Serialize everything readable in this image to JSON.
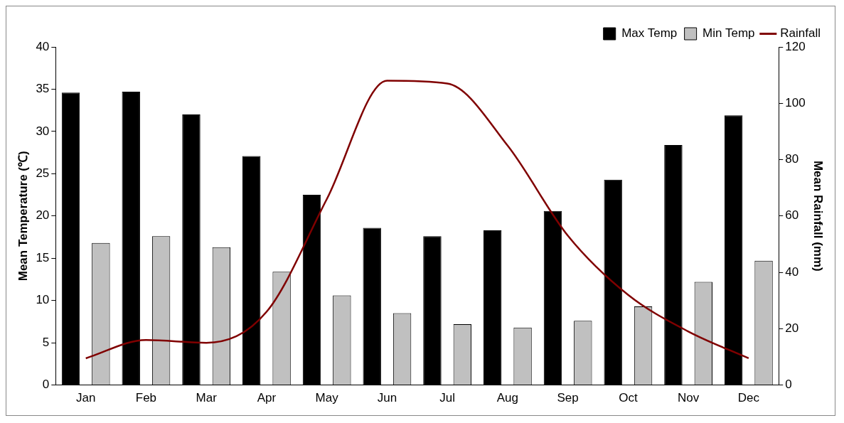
{
  "chart_data": {
    "type": "bar",
    "xlabel": null,
    "ylabel": "Mean Temperature (℃)",
    "y2label": "Mean Rainfall (mm)",
    "categories": [
      "Jan",
      "Feb",
      "Mar",
      "Apr",
      "May",
      "Jun",
      "Jul",
      "Aug",
      "Sep",
      "Oct",
      "Nov",
      "Dec"
    ],
    "series": [
      {
        "name": "Max Temp",
        "color": "#000000",
        "values": [
          34.6,
          34.7,
          32.0,
          27.1,
          22.5,
          18.6,
          17.6,
          18.3,
          20.6,
          24.3,
          28.4,
          31.9
        ]
      },
      {
        "name": "Min Temp",
        "color": "#c0c0c0",
        "values": [
          16.8,
          17.6,
          16.3,
          13.4,
          10.6,
          8.5,
          7.2,
          6.8,
          7.6,
          9.3,
          12.2,
          14.7
        ]
      },
      {
        "name": "Rainfall",
        "type": "line",
        "axis": "y2",
        "color": "#800000",
        "values": [
          9.5,
          16,
          15,
          26,
          66,
          108,
          107,
          85,
          53,
          32,
          19,
          9.5
        ]
      }
    ],
    "ylim": [
      0,
      40
    ],
    "yticks": [
      0,
      5,
      10,
      15,
      20,
      25,
      30,
      35,
      40
    ],
    "y2lim": [
      0,
      120
    ],
    "y2ticks": [
      0,
      20,
      40,
      60,
      80,
      100,
      120
    ],
    "grid": false,
    "legend": "top right",
    "marker": "none"
  }
}
